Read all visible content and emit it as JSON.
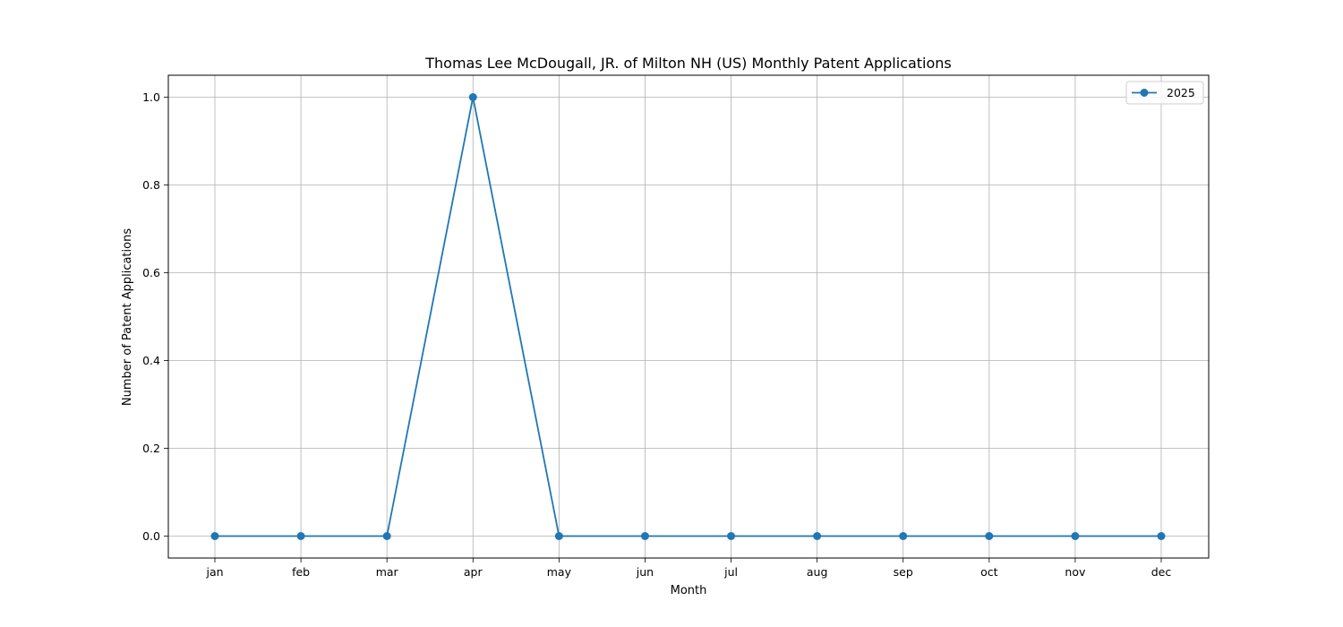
{
  "chart_data": {
    "type": "line",
    "title": "Thomas Lee McDougall, JR. of Milton NH (US) Monthly Patent Applications",
    "xlabel": "Month",
    "ylabel": "Number of Patent Applications",
    "categories": [
      "jan",
      "feb",
      "mar",
      "apr",
      "may",
      "jun",
      "jul",
      "aug",
      "sep",
      "oct",
      "nov",
      "dec"
    ],
    "series": [
      {
        "name": "2025",
        "values": [
          0,
          0,
          0,
          1,
          0,
          0,
          0,
          0,
          0,
          0,
          0,
          0
        ],
        "color": "#1f77b4"
      }
    ],
    "ylim": [
      -0.05,
      1.05
    ],
    "yticks": [
      "0.0",
      "0.2",
      "0.4",
      "0.6",
      "0.8",
      "1.0"
    ],
    "grid": true,
    "legend_position": "top-right"
  }
}
